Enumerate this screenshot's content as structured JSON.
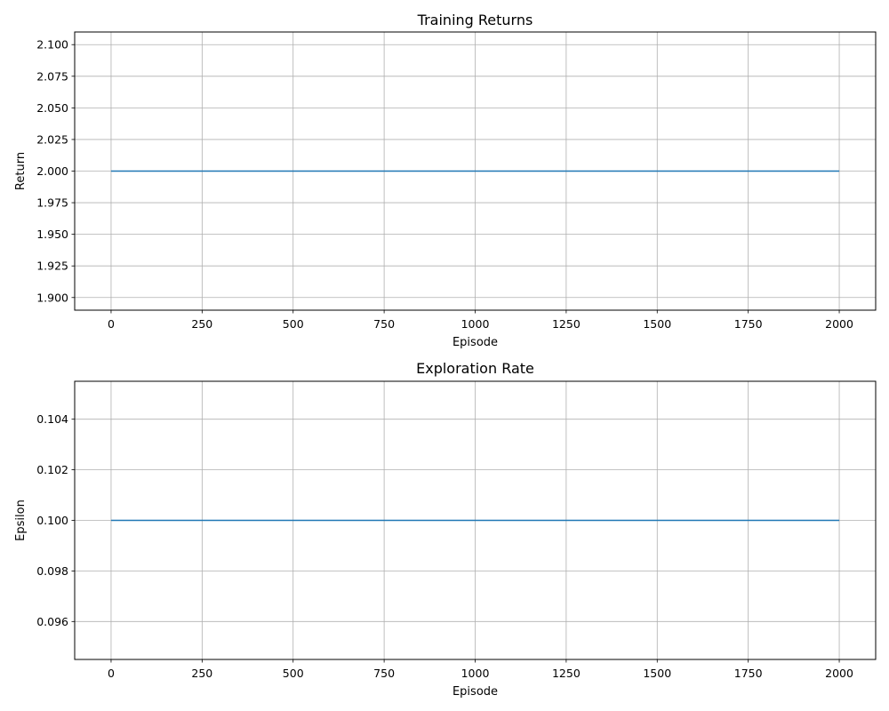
{
  "chart_data": [
    {
      "type": "line",
      "title": "Training Returns",
      "xlabel": "Episode",
      "ylabel": "Return",
      "xlim": [
        -100,
        2100
      ],
      "ylim": [
        1.89,
        2.11
      ],
      "xticks": [
        0,
        250,
        500,
        750,
        1000,
        1250,
        1500,
        1750,
        2000
      ],
      "xtick_labels": [
        "0",
        "250",
        "500",
        "750",
        "1000",
        "1250",
        "1500",
        "1750",
        "2000"
      ],
      "yticks": [
        1.9,
        1.925,
        1.95,
        1.975,
        2.0,
        2.025,
        2.05,
        2.075,
        2.1
      ],
      "ytick_labels": [
        "1.900",
        "1.925",
        "1.950",
        "1.975",
        "2.000",
        "2.025",
        "2.050",
        "2.075",
        "2.100"
      ],
      "grid": true,
      "series": [
        {
          "x": [
            0,
            2000
          ],
          "y": [
            2.0,
            2.0
          ],
          "color": "#1f77b4"
        }
      ]
    },
    {
      "type": "line",
      "title": "Exploration Rate",
      "xlabel": "Episode",
      "ylabel": "Epsilon",
      "xlim": [
        -100,
        2100
      ],
      "ylim": [
        0.0945,
        0.1055
      ],
      "xticks": [
        0,
        250,
        500,
        750,
        1000,
        1250,
        1500,
        1750,
        2000
      ],
      "xtick_labels": [
        "0",
        "250",
        "500",
        "750",
        "1000",
        "1250",
        "1500",
        "1750",
        "2000"
      ],
      "yticks": [
        0.096,
        0.098,
        0.1,
        0.102,
        0.104
      ],
      "ytick_labels": [
        "0.096",
        "0.098",
        "0.100",
        "0.102",
        "0.104"
      ],
      "grid": true,
      "series": [
        {
          "x": [
            0,
            2000
          ],
          "y": [
            0.1,
            0.1
          ],
          "color": "#1f77b4"
        }
      ]
    }
  ]
}
